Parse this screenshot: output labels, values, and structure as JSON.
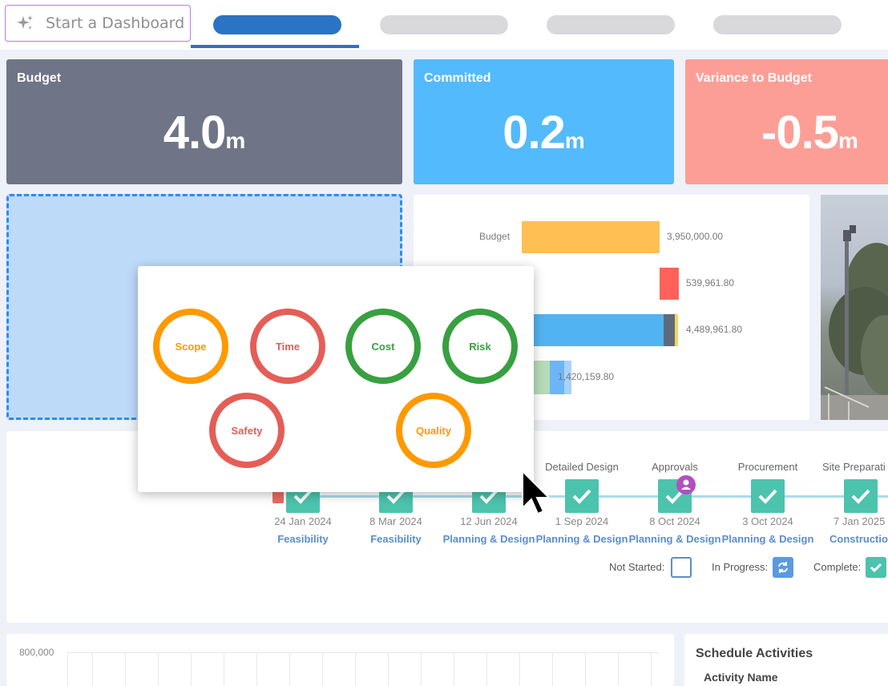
{
  "toolbar": {
    "start_dashboard_label": "Start a Dashboard",
    "icon": "sparkle-icon"
  },
  "tabs": [
    {
      "state": "active"
    },
    {
      "state": "placeholder"
    },
    {
      "state": "placeholder"
    },
    {
      "state": "placeholder"
    }
  ],
  "kpis": [
    {
      "title": "Budget",
      "value": "4.0",
      "unit": "m",
      "color": "#6f7586"
    },
    {
      "title": "Committed",
      "value": "0.2",
      "unit": "m",
      "color": "#53bafd"
    },
    {
      "title": "Variance to Budget",
      "value": "-0.5",
      "unit": "m",
      "color": "#fd9e96"
    }
  ],
  "bar_chart": {
    "rows": [
      {
        "label": "Budget",
        "value_label": "3,950,000.00"
      },
      {
        "label": "",
        "value_label": "539,961.80"
      },
      {
        "label": "",
        "value_label": "4,489,961.80"
      },
      {
        "label": "",
        "value_label": "1,420,159.80"
      }
    ],
    "colors": {
      "budget": "#ffbf52",
      "red": "#ff6259",
      "blue": "#52b3f2",
      "slate": "#5f6b7d",
      "yellow": "#ffd35a",
      "green": "#b6dbb7",
      "lightblue": "#6db5f7"
    }
  },
  "popup": {
    "items": [
      {
        "label": "Scope",
        "color": "#ff9900"
      },
      {
        "label": "Time",
        "color": "#e45e57"
      },
      {
        "label": "Cost",
        "color": "#38a040"
      },
      {
        "label": "Risk",
        "color": "#38a040"
      },
      {
        "label": "Safety",
        "color": "#e45e57"
      },
      {
        "label": "Quality",
        "color": "#ff9900"
      }
    ]
  },
  "timeline": {
    "stages": [
      {
        "title": "",
        "date": "24 Jan 2024",
        "phase": "Feasibility"
      },
      {
        "title": "",
        "date": "8 Mar 2024",
        "phase": "Feasibility"
      },
      {
        "title": "",
        "date": "12 Jun 2024",
        "phase": "Planning & Design"
      },
      {
        "title": "Detailed Design",
        "date": "1 Sep 2024",
        "phase": "Planning & Design"
      },
      {
        "title": "Approvals",
        "date": "8 Oct 2024",
        "phase": "Planning & Design"
      },
      {
        "title": "Procurement",
        "date": "3 Oct 2024",
        "phase": "Planning & Design"
      },
      {
        "title": "Site Preparati",
        "date": "7 Jan 2025",
        "phase": "Construction"
      }
    ],
    "legend": {
      "not_started": "Not Started:",
      "in_progress": "In Progress:",
      "complete": "Complete:"
    }
  },
  "bottom": {
    "y_axis_top": "800,000",
    "schedule_title": "Schedule Activities",
    "activity_name_header": "Activity Name"
  }
}
